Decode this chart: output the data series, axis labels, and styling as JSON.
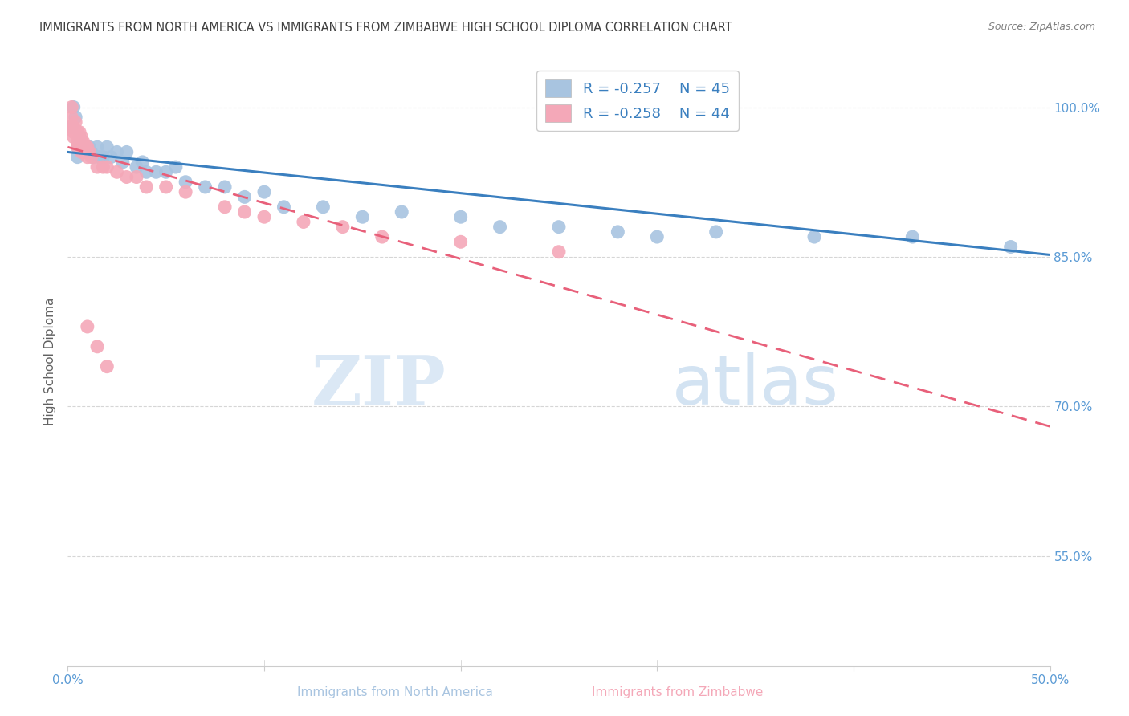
{
  "title": "IMMIGRANTS FROM NORTH AMERICA VS IMMIGRANTS FROM ZIMBABWE HIGH SCHOOL DIPLOMA CORRELATION CHART",
  "source": "Source: ZipAtlas.com",
  "ylabel": "High School Diploma",
  "yticks": [
    "100.0%",
    "85.0%",
    "70.0%",
    "55.0%"
  ],
  "ytick_vals": [
    1.0,
    0.85,
    0.7,
    0.55
  ],
  "xlim": [
    0.0,
    0.5
  ],
  "ylim": [
    0.44,
    1.05
  ],
  "legend_blue_r": "R = -0.257",
  "legend_blue_n": "N = 45",
  "legend_pink_r": "R = -0.258",
  "legend_pink_n": "N = 44",
  "legend_blue_label": "Immigrants from North America",
  "legend_pink_label": "Immigrants from Zimbabwe",
  "blue_color": "#A8C4E0",
  "pink_color": "#F4A8B8",
  "blue_line_color": "#3A7FBF",
  "pink_line_color": "#E8607A",
  "blue_scatter_x": [
    0.002,
    0.003,
    0.004,
    0.005,
    0.005,
    0.006,
    0.007,
    0.008,
    0.009,
    0.01,
    0.011,
    0.012,
    0.013,
    0.015,
    0.016,
    0.018,
    0.02,
    0.022,
    0.025,
    0.028,
    0.03,
    0.035,
    0.038,
    0.04,
    0.045,
    0.05,
    0.055,
    0.06,
    0.07,
    0.08,
    0.09,
    0.1,
    0.11,
    0.13,
    0.15,
    0.17,
    0.2,
    0.22,
    0.25,
    0.28,
    0.3,
    0.33,
    0.38,
    0.43,
    0.48
  ],
  "blue_scatter_y": [
    0.98,
    1.0,
    0.99,
    0.96,
    0.95,
    0.97,
    0.96,
    0.955,
    0.96,
    0.955,
    0.96,
    0.955,
    0.95,
    0.96,
    0.95,
    0.95,
    0.96,
    0.95,
    0.955,
    0.945,
    0.955,
    0.94,
    0.945,
    0.935,
    0.935,
    0.935,
    0.94,
    0.925,
    0.92,
    0.92,
    0.91,
    0.915,
    0.9,
    0.9,
    0.89,
    0.895,
    0.89,
    0.88,
    0.88,
    0.875,
    0.87,
    0.875,
    0.87,
    0.87,
    0.86
  ],
  "pink_scatter_x": [
    0.001,
    0.002,
    0.002,
    0.003,
    0.003,
    0.003,
    0.004,
    0.004,
    0.005,
    0.005,
    0.005,
    0.006,
    0.006,
    0.007,
    0.007,
    0.007,
    0.008,
    0.008,
    0.009,
    0.009,
    0.01,
    0.01,
    0.011,
    0.012,
    0.015,
    0.018,
    0.02,
    0.025,
    0.03,
    0.035,
    0.04,
    0.05,
    0.06,
    0.08,
    0.09,
    0.1,
    0.12,
    0.14,
    0.16,
    0.2,
    0.25,
    0.01,
    0.015,
    0.02
  ],
  "pink_scatter_y": [
    0.98,
    0.99,
    1.0,
    0.98,
    0.975,
    0.97,
    0.985,
    0.975,
    0.975,
    0.965,
    0.96,
    0.975,
    0.965,
    0.97,
    0.96,
    0.955,
    0.965,
    0.955,
    0.96,
    0.955,
    0.96,
    0.95,
    0.955,
    0.95,
    0.94,
    0.94,
    0.94,
    0.935,
    0.93,
    0.93,
    0.92,
    0.92,
    0.915,
    0.9,
    0.895,
    0.89,
    0.885,
    0.88,
    0.87,
    0.865,
    0.855,
    0.78,
    0.76,
    0.74
  ],
  "blue_line_x0": 0.0,
  "blue_line_y0": 0.955,
  "blue_line_x1": 0.5,
  "blue_line_y1": 0.852,
  "pink_line_x0": 0.0,
  "pink_line_y0": 0.96,
  "pink_line_x1": 0.5,
  "pink_line_y1": 0.68,
  "watermark_zip": "ZIP",
  "watermark_atlas": "atlas",
  "background_color": "#ffffff",
  "grid_color": "#cccccc",
  "tick_label_color": "#5B9BD5",
  "title_color": "#404040",
  "axis_label_color": "#606060"
}
